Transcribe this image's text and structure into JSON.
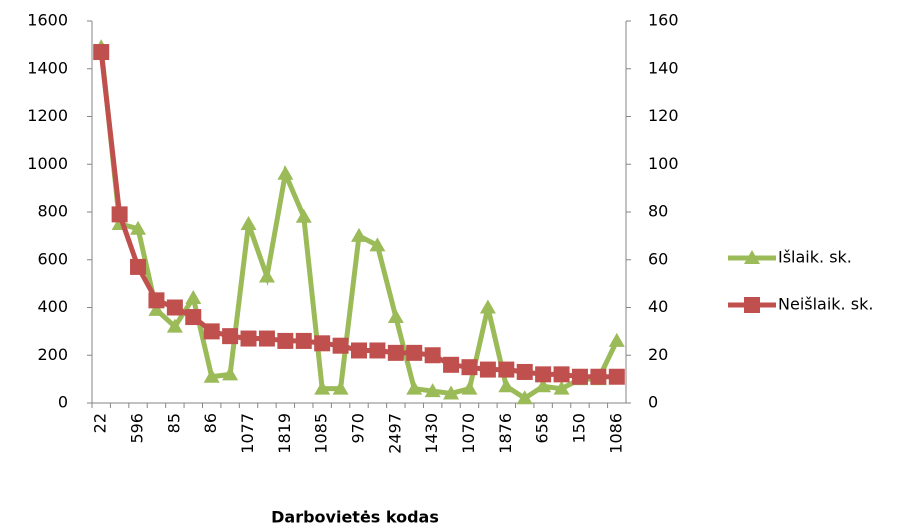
{
  "chart_data": {
    "type": "line",
    "x_label": "Darbovietės kodas",
    "categories": [
      "22",
      null,
      "596",
      null,
      "85",
      null,
      "86",
      null,
      "1077",
      null,
      "1819",
      null,
      "1085",
      null,
      "970",
      null,
      "2497",
      null,
      "1430",
      null,
      "1070",
      null,
      "1876",
      null,
      "658",
      null,
      "150",
      null,
      "1086"
    ],
    "series": [
      {
        "name": "Išlaik. sk.",
        "color": "#9bbb59",
        "marker": "triangle",
        "values": [
          1490,
          750,
          730,
          390,
          320,
          440,
          110,
          120,
          750,
          530,
          960,
          780,
          60,
          60,
          700,
          660,
          360,
          60,
          50,
          40,
          60,
          400,
          70,
          20,
          70,
          60,
          100,
          100,
          260
        ]
      },
      {
        "name": "Neišlaik. sk.",
        "color": "#c0504d",
        "marker": "square",
        "axis": "y2",
        "values": [
          147,
          79,
          57,
          43,
          40,
          36,
          30,
          28,
          27,
          27,
          26,
          26,
          25,
          24,
          22,
          22,
          21,
          21,
          20,
          16,
          15,
          14,
          14,
          13,
          12,
          12,
          11,
          11,
          11
        ]
      }
    ],
    "ylim": [
      0,
      1600
    ],
    "yticks": [
      0,
      200,
      400,
      600,
      800,
      1000,
      1200,
      1400,
      1600
    ],
    "y2lim": [
      0,
      160
    ],
    "y2ticks": [
      0,
      20,
      40,
      60,
      80,
      100,
      120,
      140,
      160
    ],
    "legend": "right"
  }
}
